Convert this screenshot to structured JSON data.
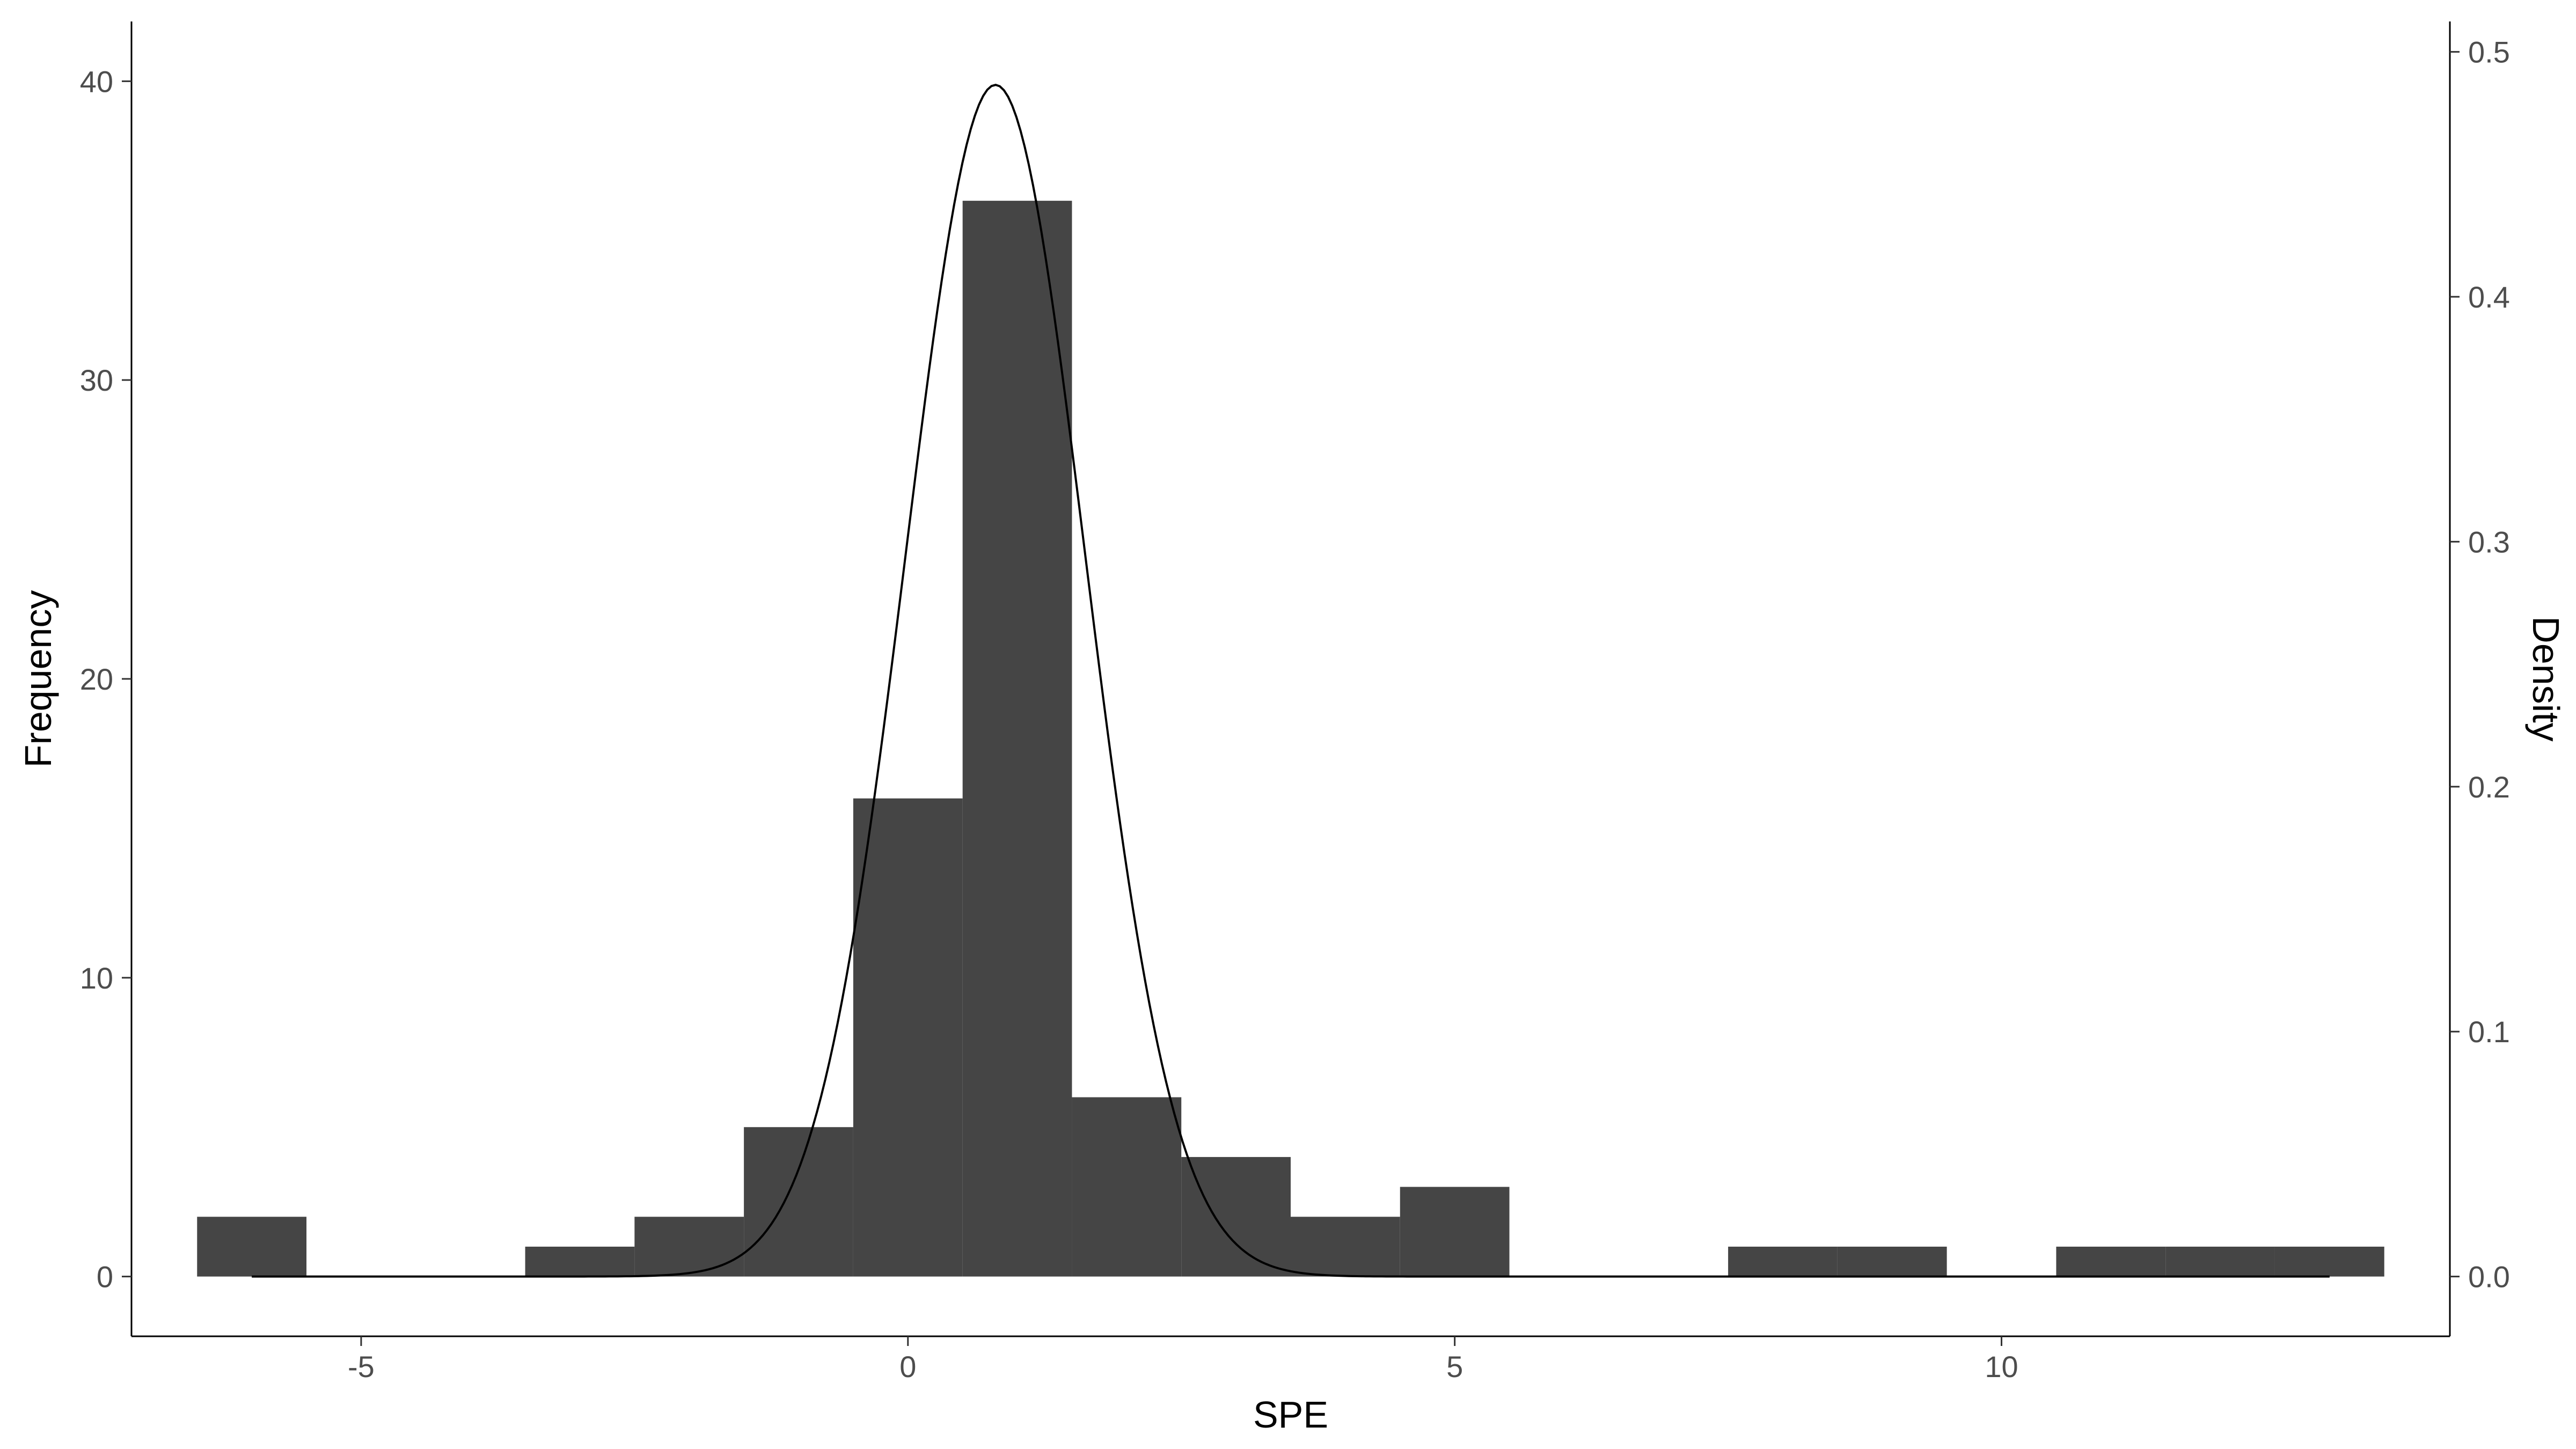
{
  "chart_data": {
    "type": "bar",
    "subtype": "histogram-with-density-curve",
    "title": "",
    "xlabel": "SPE",
    "ylabel": "Frequency",
    "y2label": "Density",
    "xlim": [
      -7.1,
      14.1
    ],
    "ylim": [
      -2,
      42
    ],
    "y2lim": [
      -0.0244,
      0.5124
    ],
    "xticks": [
      -5,
      0,
      5,
      10
    ],
    "yticks": [
      0,
      10,
      20,
      30,
      40
    ],
    "y2ticks": [
      0.0,
      0.1,
      0.2,
      0.3,
      0.4,
      0.5
    ],
    "y2tick_labels": [
      "0.0",
      "0.1",
      "0.2",
      "0.3",
      "0.4",
      "0.5"
    ],
    "grid": false,
    "legend": "none",
    "bar_color": "#454545",
    "curve_color": "#000000",
    "bins": [
      {
        "x0": -6.5,
        "x1": -5.5,
        "count": 2
      },
      {
        "x0": -5.5,
        "x1": -4.5,
        "count": 0
      },
      {
        "x0": -4.5,
        "x1": -3.5,
        "count": 0
      },
      {
        "x0": -3.5,
        "x1": -2.5,
        "count": 1
      },
      {
        "x0": -2.5,
        "x1": -1.5,
        "count": 2
      },
      {
        "x0": -1.5,
        "x1": -0.5,
        "count": 5
      },
      {
        "x0": -0.5,
        "x1": 0.5,
        "count": 16
      },
      {
        "x0": 0.5,
        "x1": 1.5,
        "count": 36
      },
      {
        "x0": 1.5,
        "x1": 2.5,
        "count": 6
      },
      {
        "x0": 2.5,
        "x1": 3.5,
        "count": 4
      },
      {
        "x0": 3.5,
        "x1": 4.5,
        "count": 2
      },
      {
        "x0": 4.5,
        "x1": 5.5,
        "count": 3
      },
      {
        "x0": 5.5,
        "x1": 6.5,
        "count": 0
      },
      {
        "x0": 6.5,
        "x1": 7.5,
        "count": 0
      },
      {
        "x0": 7.5,
        "x1": 8.5,
        "count": 1
      },
      {
        "x0": 8.5,
        "x1": 9.5,
        "count": 1
      },
      {
        "x0": 9.5,
        "x1": 10.5,
        "count": 0
      },
      {
        "x0": 10.5,
        "x1": 11.5,
        "count": 1
      },
      {
        "x0": 11.5,
        "x1": 12.5,
        "count": 1
      },
      {
        "x0": 12.5,
        "x1": 13.5,
        "count": 1
      }
    ],
    "density_curve": {
      "distribution": "normal",
      "mean": 0.8,
      "sd": 0.82,
      "x_range": [
        -6.0,
        13.0
      ]
    }
  }
}
